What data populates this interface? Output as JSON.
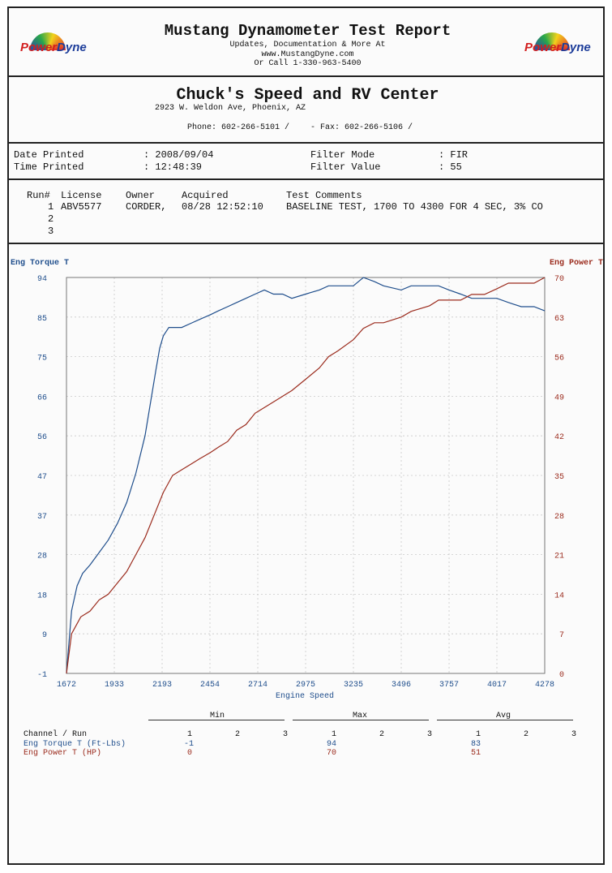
{
  "header": {
    "title": "Mustang Dynamometer Test Report",
    "line1": "Updates, Documentation & More At",
    "line2": "www.MustangDyne.com",
    "line3": "Or Call 1-330-963-5400",
    "logo_text_a": "Power",
    "logo_text_b": "Dyne"
  },
  "shop": {
    "name": "Chuck's Speed and RV Center",
    "address": "2923 W. Weldon Ave, Phoenix, AZ",
    "phone": "Phone: 602-266-5101 /",
    "fax": "- Fax: 602-266-5106 /"
  },
  "print_info": {
    "date_label": "Date Printed",
    "date_value": ": 2008/09/04",
    "time_label": "Time Printed",
    "time_value": ": 12:48:39",
    "filter_mode_label": "Filter Mode",
    "filter_mode_value": ": FIR",
    "filter_value_label": "Filter Value",
    "filter_value_value": ": 55"
  },
  "runs": {
    "headers": [
      "Run#",
      "License",
      "Owner",
      "Acquired",
      "Test Comments"
    ],
    "rows": [
      [
        "1",
        "ABV5577",
        "CORDER,",
        "08/28 12:52:10",
        "BASELINE TEST, 1700 TO 4300 FOR 4 SEC, 3% CO"
      ],
      [
        "2",
        "",
        "",
        "",
        ""
      ],
      [
        "3",
        "",
        "",
        "",
        ""
      ]
    ]
  },
  "chart_data": {
    "type": "line",
    "xlabel": "Engine Speed",
    "ylabel_left": "Eng Torque T",
    "ylabel_right": "Eng Power T",
    "x_ticks": [
      "1672",
      "1933",
      "2193",
      "2454",
      "2714",
      "2975",
      "3235",
      "3496",
      "3757",
      "4017",
      "4278"
    ],
    "y_left_ticks": [
      "94",
      "85",
      "75",
      "66",
      "56",
      "47",
      "37",
      "28",
      "18",
      "9",
      "-1"
    ],
    "y_right_ticks": [
      "70",
      "63",
      "56",
      "49",
      "42",
      "35",
      "28",
      "21",
      "14",
      "7",
      "0"
    ],
    "xlim": [
      1672,
      4278
    ],
    "ylim_left": [
      -1,
      94
    ],
    "ylim_right": [
      0,
      70
    ],
    "grid": true,
    "colors": {
      "torque": "#1f4e8c",
      "power": "#9b2b1d",
      "axis_left": "#1f4e8c",
      "axis_right": "#9b2b1d",
      "grid": "#c9c9c9"
    },
    "series": [
      {
        "name": "Eng Torque T",
        "axis": "left",
        "x": [
          1672,
          1700,
          1730,
          1760,
          1800,
          1850,
          1900,
          1950,
          2000,
          2050,
          2100,
          2130,
          2160,
          2180,
          2200,
          2230,
          2260,
          2300,
          2350,
          2400,
          2454,
          2500,
          2550,
          2600,
          2650,
          2700,
          2750,
          2800,
          2850,
          2900,
          2975,
          3050,
          3100,
          3150,
          3235,
          3290,
          3350,
          3400,
          3496,
          3550,
          3650,
          3700,
          3757,
          3820,
          3880,
          3950,
          4017,
          4080,
          4150,
          4220,
          4278
        ],
        "y": [
          -1,
          14,
          20,
          23,
          25,
          28,
          31,
          35,
          40,
          47,
          56,
          64,
          72,
          77,
          80,
          82,
          82,
          82,
          83,
          84,
          85,
          86,
          87,
          88,
          89,
          90,
          91,
          90,
          90,
          89,
          90,
          91,
          92,
          92,
          92,
          94,
          93,
          92,
          91,
          92,
          92,
          92,
          91,
          90,
          89,
          89,
          89,
          88,
          87,
          87,
          86
        ]
      },
      {
        "name": "Eng Power T",
        "axis": "right",
        "x": [
          1672,
          1700,
          1750,
          1800,
          1850,
          1900,
          1950,
          2000,
          2050,
          2100,
          2150,
          2200,
          2250,
          2300,
          2350,
          2400,
          2454,
          2500,
          2550,
          2600,
          2650,
          2700,
          2800,
          2900,
          2975,
          3050,
          3100,
          3150,
          3235,
          3290,
          3350,
          3400,
          3496,
          3550,
          3650,
          3700,
          3757,
          3820,
          3880,
          3950,
          4017,
          4080,
          4150,
          4220,
          4278
        ],
        "y": [
          0,
          7,
          10,
          11,
          13,
          14,
          16,
          18,
          21,
          24,
          28,
          32,
          35,
          36,
          37,
          38,
          39,
          40,
          41,
          43,
          44,
          46,
          48,
          50,
          52,
          54,
          56,
          57,
          59,
          61,
          62,
          62,
          63,
          64,
          65,
          66,
          66,
          66,
          67,
          67,
          68,
          69,
          69,
          69,
          70
        ]
      }
    ]
  },
  "stats": {
    "channel_label": "Channel / Run",
    "groups": [
      "Min",
      "Max",
      "Avg"
    ],
    "run_numbers": [
      "1",
      "2",
      "3"
    ],
    "rows": [
      {
        "name": "Eng Torque T (Ft-Lbs)",
        "min": "-1",
        "max": "94",
        "avg": "83"
      },
      {
        "name": "Eng Power T (HP)",
        "min": "0",
        "max": "70",
        "avg": "51"
      }
    ]
  }
}
